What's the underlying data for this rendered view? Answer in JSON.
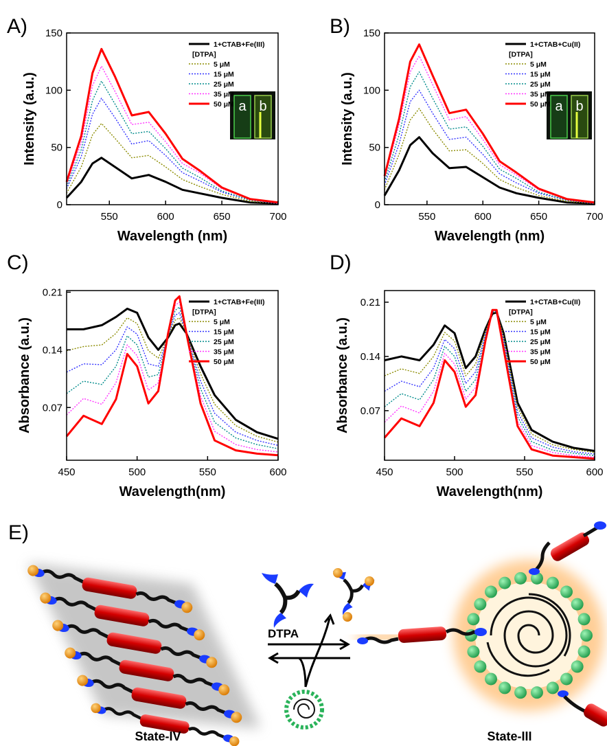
{
  "chart_data": [
    {
      "type": "line",
      "panel_label": "A)",
      "x_label": "Wavelength (nm)",
      "y_label": "Intensity (a.u.)",
      "legend_title": "[DTPA]",
      "inset_labels": [
        "a",
        "b"
      ],
      "xlim": [
        512,
        700
      ],
      "xticks": [
        550,
        600,
        650,
        700
      ],
      "ylim": [
        0,
        150
      ],
      "yticks": [
        0,
        50,
        100,
        150
      ],
      "x": [
        512,
        525,
        535,
        543,
        555,
        570,
        585,
        600,
        615,
        630,
        650,
        675,
        700
      ],
      "series": [
        {
          "name": "1+CTAB+Fe(III)",
          "color": "#000000",
          "dotted": false,
          "values": [
            6,
            20,
            36,
            41,
            33,
            23,
            26,
            20,
            13,
            10,
            6,
            2,
            1
          ]
        },
        {
          "name": "5 μM",
          "color": "#8b8b00",
          "dotted": true,
          "values": [
            10,
            33,
            61,
            71,
            58,
            41,
            43,
            33,
            22,
            16,
            9,
            3,
            1
          ]
        },
        {
          "name": "15 μM",
          "color": "#3333ff",
          "dotted": true,
          "values": [
            14,
            42,
            79,
            93,
            76,
            53,
            56,
            43,
            28,
            21,
            11,
            4,
            1
          ]
        },
        {
          "name": "25 μM",
          "color": "#008b8b",
          "dotted": true,
          "values": [
            16,
            48,
            91,
            108,
            88,
            62,
            64,
            49,
            32,
            24,
            12,
            4,
            2
          ]
        },
        {
          "name": "35 μM",
          "color": "#ff33ff",
          "dotted": true,
          "values": [
            18,
            54,
            104,
            121,
            99,
            70,
            72,
            55,
            36,
            28,
            14,
            5,
            2
          ]
        },
        {
          "name": "50 μM",
          "color": "#ff0000",
          "dotted": false,
          "values": [
            20,
            60,
            115,
            136,
            112,
            78,
            81,
            62,
            40,
            30,
            15,
            5,
            2
          ]
        }
      ]
    },
    {
      "type": "line",
      "panel_label": "B)",
      "x_label": "Wavelength (nm)",
      "y_label": "Intensity (a.u.)",
      "legend_title": "[DTPA]",
      "inset_labels": [
        "a",
        "b"
      ],
      "xlim": [
        512,
        700
      ],
      "xticks": [
        550,
        600,
        650,
        700
      ],
      "ylim": [
        0,
        150
      ],
      "yticks": [
        0,
        50,
        100,
        150
      ],
      "x": [
        512,
        525,
        535,
        543,
        555,
        570,
        585,
        600,
        615,
        630,
        650,
        675,
        700
      ],
      "series": [
        {
          "name": "1+CTAB+Cu(II)",
          "color": "#000000",
          "dotted": false,
          "values": [
            8,
            30,
            52,
            59,
            45,
            32,
            33,
            24,
            15,
            10,
            6,
            2,
            1
          ]
        },
        {
          "name": "5 μM",
          "color": "#8b8b00",
          "dotted": true,
          "values": [
            13,
            44,
            74,
            84,
            66,
            47,
            48,
            36,
            22,
            15,
            8,
            3,
            1
          ]
        },
        {
          "name": "15 μM",
          "color": "#3333ff",
          "dotted": true,
          "values": [
            17,
            53,
            90,
            100,
            80,
            57,
            59,
            44,
            27,
            19,
            10,
            4,
            1
          ]
        },
        {
          "name": "25 μM",
          "color": "#008b8b",
          "dotted": true,
          "values": [
            20,
            61,
            103,
            116,
            93,
            66,
            68,
            51,
            31,
            23,
            11,
            4,
            2
          ]
        },
        {
          "name": "35 μM",
          "color": "#ff33ff",
          "dotted": true,
          "values": [
            23,
            70,
            116,
            130,
            105,
            74,
            77,
            57,
            35,
            26,
            13,
            5,
            2
          ]
        },
        {
          "name": "50 μM",
          "color": "#ff0000",
          "dotted": false,
          "values": [
            25,
            75,
            125,
            140,
            113,
            80,
            83,
            62,
            38,
            28,
            14,
            5,
            2
          ]
        }
      ]
    },
    {
      "type": "line",
      "panel_label": "C)",
      "x_label": "Wavelength(nm)",
      "y_label": "Absorbance (a.u.)",
      "legend_title": "[DTPA]",
      "xlim": [
        450,
        600
      ],
      "xticks": [
        450,
        500,
        550,
        600
      ],
      "ylim": [
        0.006,
        0.212
      ],
      "yticks": [
        0.07,
        0.14,
        0.21
      ],
      "x": [
        450,
        462,
        475,
        485,
        493,
        500,
        508,
        515,
        522,
        527,
        530,
        535,
        545,
        555,
        570,
        585,
        600
      ],
      "series": [
        {
          "name": "1+CTAB+Fe(III)",
          "color": "#000000",
          "dotted": false,
          "values": [
            0.165,
            0.165,
            0.17,
            0.18,
            0.19,
            0.185,
            0.155,
            0.14,
            0.155,
            0.17,
            0.172,
            0.16,
            0.12,
            0.085,
            0.055,
            0.04,
            0.032
          ]
        },
        {
          "name": "5 μM",
          "color": "#8b8b00",
          "dotted": true,
          "values": [
            0.139,
            0.144,
            0.146,
            0.16,
            0.179,
            0.172,
            0.139,
            0.13,
            0.156,
            0.176,
            0.179,
            0.16,
            0.111,
            0.074,
            0.048,
            0.035,
            0.028
          ]
        },
        {
          "name": "15 μM",
          "color": "#3333ff",
          "dotted": true,
          "values": [
            0.113,
            0.123,
            0.122,
            0.14,
            0.168,
            0.159,
            0.123,
            0.12,
            0.157,
            0.182,
            0.185,
            0.16,
            0.102,
            0.063,
            0.04,
            0.03,
            0.024
          ]
        },
        {
          "name": "25 μM",
          "color": "#008b8b",
          "dotted": true,
          "values": [
            0.087,
            0.102,
            0.098,
            0.12,
            0.157,
            0.146,
            0.107,
            0.11,
            0.158,
            0.188,
            0.192,
            0.16,
            0.093,
            0.052,
            0.033,
            0.025,
            0.02
          ]
        },
        {
          "name": "35 μM",
          "color": "#ff33ff",
          "dotted": true,
          "values": [
            0.061,
            0.081,
            0.074,
            0.1,
            0.146,
            0.133,
            0.091,
            0.1,
            0.159,
            0.194,
            0.198,
            0.16,
            0.084,
            0.041,
            0.025,
            0.019,
            0.016
          ]
        },
        {
          "name": "50 μM",
          "color": "#ff0000",
          "dotted": false,
          "values": [
            0.035,
            0.06,
            0.05,
            0.08,
            0.135,
            0.12,
            0.075,
            0.09,
            0.16,
            0.2,
            0.205,
            0.16,
            0.075,
            0.03,
            0.018,
            0.014,
            0.012
          ]
        }
      ]
    },
    {
      "type": "line",
      "panel_label": "D)",
      "x_label": "Wavelength(nm)",
      "y_label": "Absorbance (a.u.)",
      "legend_title": "[DTPA]",
      "xlim": [
        450,
        600
      ],
      "xticks": [
        450,
        500,
        550,
        600
      ],
      "ylim": [
        0.006,
        0.225
      ],
      "yticks": [
        0.07,
        0.14,
        0.21
      ],
      "x": [
        450,
        462,
        475,
        485,
        493,
        500,
        508,
        515,
        522,
        527,
        530,
        535,
        545,
        555,
        570,
        585,
        600
      ],
      "series": [
        {
          "name": "1+CTAB+Cu(II)",
          "color": "#000000",
          "dotted": false,
          "values": [
            0.135,
            0.14,
            0.135,
            0.155,
            0.18,
            0.17,
            0.125,
            0.14,
            0.175,
            0.195,
            0.197,
            0.17,
            0.08,
            0.045,
            0.03,
            0.022,
            0.018
          ]
        },
        {
          "name": "5 μM",
          "color": "#8b8b00",
          "dotted": true,
          "values": [
            0.115,
            0.124,
            0.118,
            0.14,
            0.171,
            0.16,
            0.115,
            0.13,
            0.172,
            0.196,
            0.198,
            0.166,
            0.074,
            0.04,
            0.026,
            0.02,
            0.016
          ]
        },
        {
          "name": "15 μM",
          "color": "#3333ff",
          "dotted": true,
          "values": [
            0.095,
            0.108,
            0.101,
            0.125,
            0.162,
            0.15,
            0.105,
            0.12,
            0.169,
            0.197,
            0.198,
            0.162,
            0.068,
            0.035,
            0.023,
            0.017,
            0.014
          ]
        },
        {
          "name": "25 μM",
          "color": "#008b8b",
          "dotted": true,
          "values": [
            0.075,
            0.092,
            0.084,
            0.11,
            0.153,
            0.14,
            0.095,
            0.11,
            0.166,
            0.198,
            0.199,
            0.158,
            0.062,
            0.03,
            0.019,
            0.015,
            0.012
          ]
        },
        {
          "name": "35 μM",
          "color": "#ff33ff",
          "dotted": true,
          "values": [
            0.055,
            0.076,
            0.067,
            0.095,
            0.144,
            0.13,
            0.085,
            0.1,
            0.163,
            0.199,
            0.2,
            0.154,
            0.056,
            0.025,
            0.016,
            0.012,
            0.01
          ]
        },
        {
          "name": "50 μM",
          "color": "#ff0000",
          "dotted": false,
          "values": [
            0.035,
            0.06,
            0.05,
            0.08,
            0.135,
            0.12,
            0.075,
            0.09,
            0.16,
            0.2,
            0.2,
            0.15,
            0.05,
            0.02,
            0.012,
            0.01,
            0.008
          ]
        }
      ]
    }
  ],
  "diagram": {
    "panel_label": "E)",
    "arrow_label": "DTPA",
    "left_label": "State-IV",
    "right_label": "State-III"
  }
}
